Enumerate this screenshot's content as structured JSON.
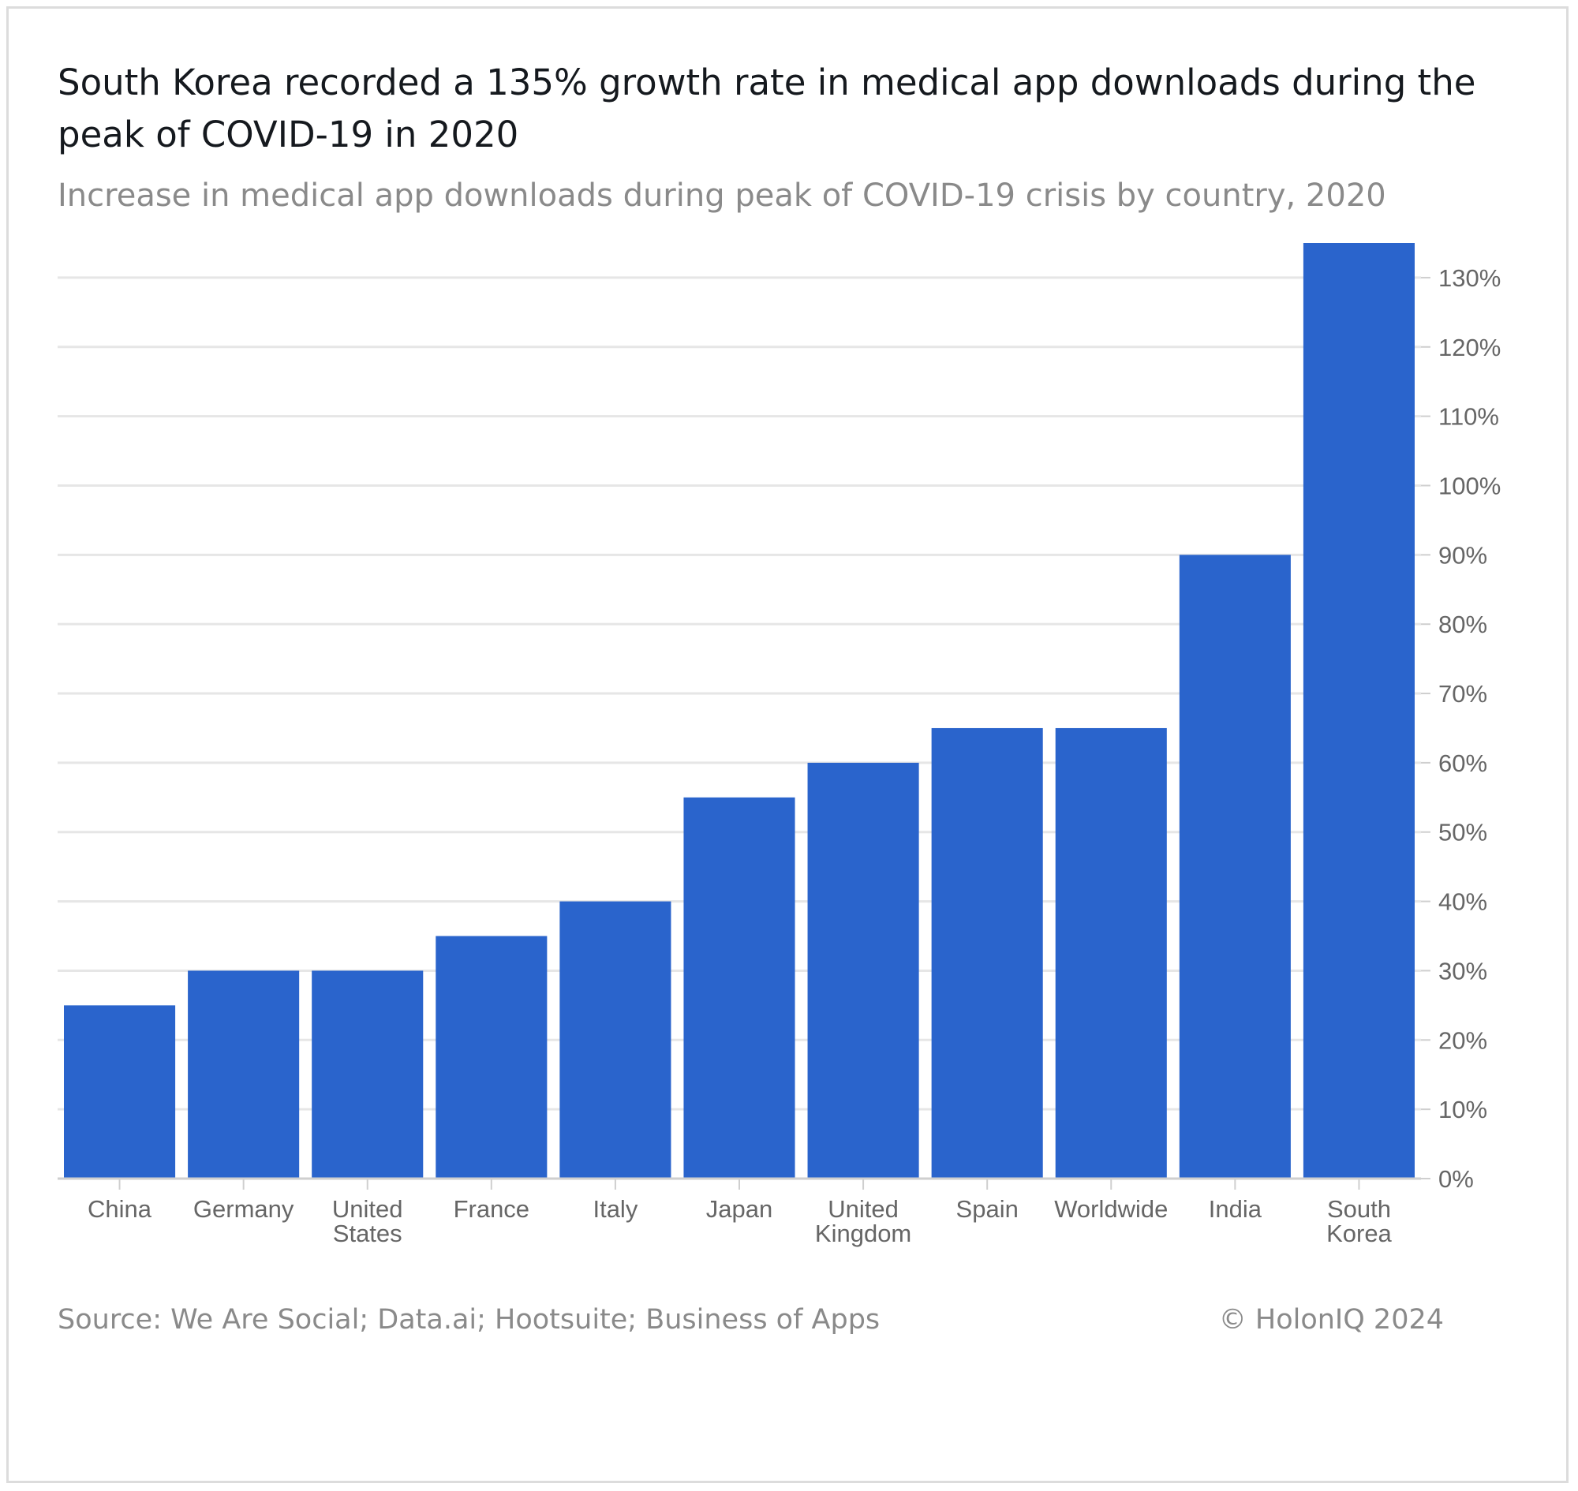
{
  "header": {
    "title": "South Korea recorded a 135% growth rate in medical app downloads during the peak of COVID-19 in 2020",
    "subtitle": "Increase in medical app downloads during peak of COVID-19 crisis by country, 2020"
  },
  "footer": {
    "source": "Source: We Are Social; Data.ai; Hootsuite; Business of Apps",
    "copyright": "© HolonIQ 2024"
  },
  "colors": {
    "bar": "#2a64cc",
    "grid": "#e6e6e6",
    "axis": "#cfcfcf",
    "tick_text": "#666666"
  },
  "chart_data": {
    "type": "bar",
    "title": "South Korea recorded a 135% growth rate in medical app downloads during the peak of COVID-19 in 2020",
    "subtitle": "Increase in medical app downloads during peak of COVID-19 crisis by country, 2020",
    "categories": [
      "China",
      "Germany",
      "United States",
      "France",
      "Italy",
      "Japan",
      "United Kingdom",
      "Spain",
      "Worldwide",
      "India",
      "South Korea"
    ],
    "category_lines": [
      [
        "China"
      ],
      [
        "Germany"
      ],
      [
        "United",
        "States"
      ],
      [
        "France"
      ],
      [
        "Italy"
      ],
      [
        "Japan"
      ],
      [
        "United",
        "Kingdom"
      ],
      [
        "Spain"
      ],
      [
        "Worldwide"
      ],
      [
        "India"
      ],
      [
        "South",
        "Korea"
      ]
    ],
    "values": [
      25,
      30,
      30,
      35,
      40,
      55,
      60,
      65,
      65,
      90,
      135
    ],
    "y_ticks": [
      0,
      10,
      20,
      30,
      40,
      50,
      60,
      70,
      80,
      90,
      100,
      110,
      120,
      130
    ],
    "y_tick_labels": [
      "0%",
      "10%",
      "20%",
      "30%",
      "40%",
      "50%",
      "60%",
      "70%",
      "80%",
      "90%",
      "100%",
      "110%",
      "120%",
      "130%"
    ],
    "ylim": [
      0,
      135
    ],
    "y_axis_position": "right",
    "xlabel": "",
    "ylabel": "",
    "grid": true,
    "legend": "none"
  }
}
